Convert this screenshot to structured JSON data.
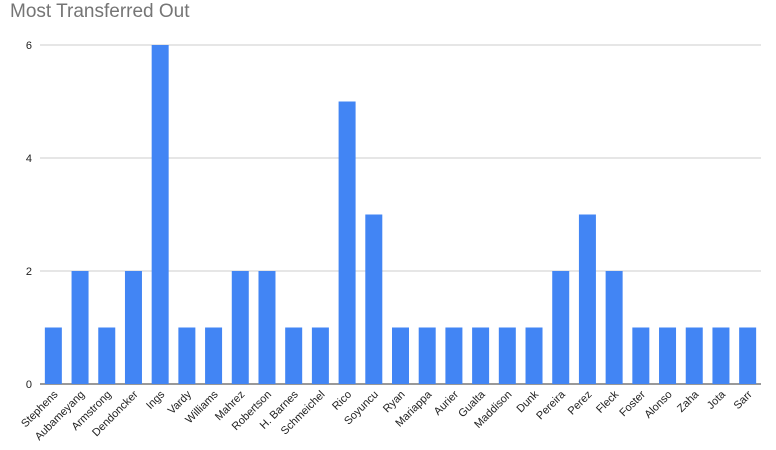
{
  "chart_data": {
    "type": "bar",
    "title": "Most Transferred Out",
    "xlabel": "",
    "ylabel": "",
    "categories": [
      "Stephens",
      "Aubameyang",
      "Armstrong",
      "Dendoncker",
      "Ings",
      "Vardy",
      "Williams",
      "Mahrez",
      "Robertson",
      "H. Barnes",
      "Schmeichel",
      "Rico",
      "Soyuncu",
      "Ryan",
      "Mariappa",
      "Aurier",
      "Gualta",
      "Maddison",
      "Dunk",
      "Pereira",
      "Perez",
      "Fleck",
      "Foster",
      "Alonso",
      "Zaha",
      "Jota",
      "Sarr"
    ],
    "values": [
      1,
      2,
      1,
      2,
      6,
      1,
      1,
      2,
      2,
      1,
      1,
      5,
      3,
      1,
      1,
      1,
      1,
      1,
      1,
      2,
      3,
      2,
      1,
      1,
      1,
      1,
      1
    ],
    "ylim": [
      0,
      6
    ],
    "yticks": [
      0,
      2,
      4,
      6
    ],
    "grid": true,
    "legend": "none",
    "bar_color": "#4285f4"
  }
}
